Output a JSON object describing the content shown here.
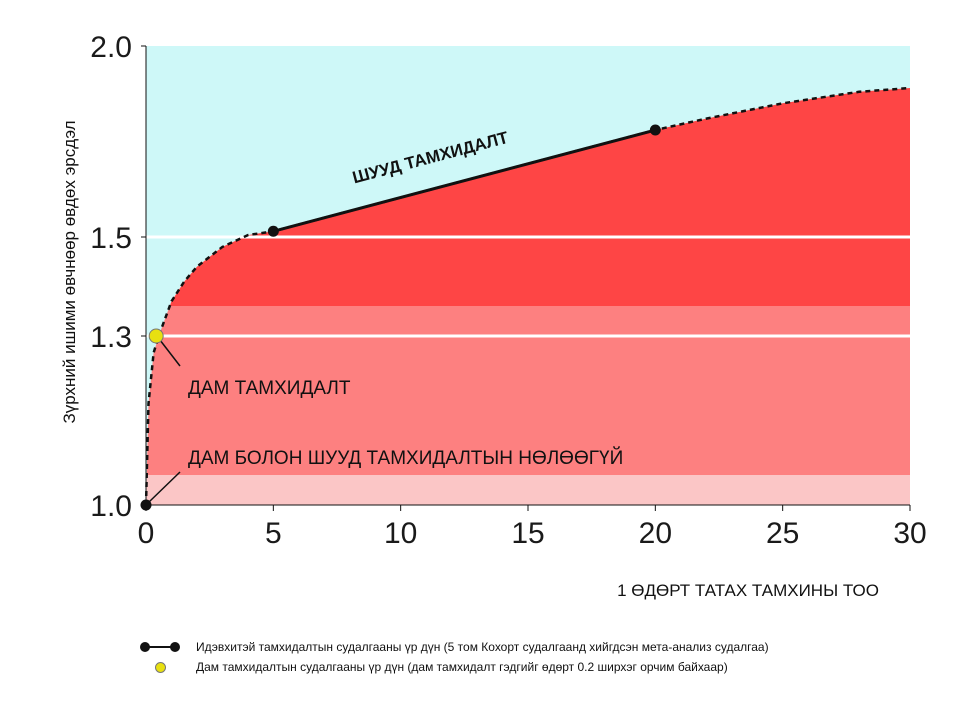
{
  "chart_data": {
    "type": "area",
    "xlabel": "1 ӨДӨРТ ТАТАХ ТАМХИНЫ ТОО",
    "ylabel": "Зүрхний ишими өвчнөөр өвдөх эрсдэл",
    "xlim": [
      0,
      30
    ],
    "x_ticks": [
      "0",
      "5",
      "10",
      "15",
      "20",
      "25",
      "30"
    ],
    "y_ticks": [
      {
        "value": 1.0,
        "label": "1.0"
      },
      {
        "value": 1.3,
        "label": "1.3"
      },
      {
        "value": 1.5,
        "label": "1.5"
      },
      {
        "value": 2.0,
        "label": "2.0"
      }
    ],
    "curve": {
      "x": [
        0,
        0.1,
        0.3,
        0.5,
        1,
        1.5,
        2,
        3,
        4,
        5,
        20,
        22,
        25,
        28,
        30
      ],
      "y": [
        1.0,
        1.18,
        1.27,
        1.3,
        1.37,
        1.41,
        1.44,
        1.48,
        1.505,
        1.515,
        1.78,
        1.81,
        1.85,
        1.88,
        1.89
      ]
    },
    "active_smoking": {
      "name": "ШУУД ТАМХИДАЛТ",
      "x": [
        5,
        20
      ],
      "y": [
        1.515,
        1.78
      ]
    },
    "passive_smoking_point": {
      "x": 0.4,
      "y": 1.3
    },
    "baseline_point": {
      "x": 0,
      "y": 1.0
    },
    "annotations": {
      "passive": "ДАМ ТАМХИДАЛТ",
      "none": "ДАМ БОЛОН ШУУД ТАМХИДАЛТЫН НӨЛӨӨГҮЙ"
    },
    "legend": [
      {
        "label": "Идэвхитэй тамхидалтын судалгааны үр дүн (5 том Кохорт судалгаанд хийгдсэн мета-анализ судалгаа)"
      },
      {
        "label": "Дам тамхидалтын судалгааны үр дүн (дам тамхидалт гэдгийг өдөрт 0.2 ширхэг орчим байхаар)"
      }
    ],
    "colors": {
      "background": "#cef8f8",
      "band_light": "#fbc6c6",
      "band_mid": "#fd8080",
      "band_dark": "#fe4545",
      "line": "#111111",
      "passive_point": "#e8e010"
    }
  }
}
